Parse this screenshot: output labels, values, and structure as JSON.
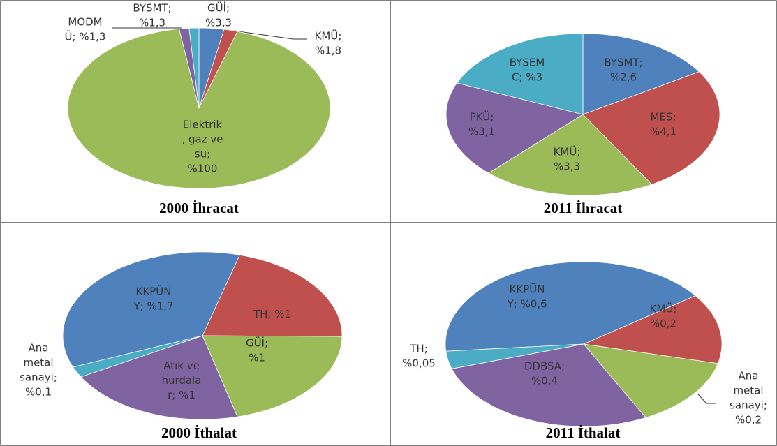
{
  "chart_data": [
    {
      "type": "pie",
      "title": "2000 İhracat",
      "start_angle": 0,
      "values": [
        3.3,
        1.8,
        100,
        1.3,
        1.3
      ],
      "value_labels": [
        "GÜİ;\n%3,3",
        "KMÜ;\n%1,8",
        "Elektrik\n, gaz ve\nsu;\n%100",
        "MODM\nÜ; %1,3",
        "BYSMT;\n%1,3"
      ],
      "colors": [
        "#4f81bd",
        "#c0504d",
        "#9bbb59",
        "#8064a2",
        "#4bacc6"
      ]
    },
    {
      "type": "pie",
      "title": "2011 İhracat",
      "start_angle": 0,
      "values": [
        2.6,
        4.1,
        3.3,
        3.1,
        3
      ],
      "value_labels": [
        "BYSMT;\n%2,6",
        "MES;\n%4,1",
        "KMÜ;\n%3,3",
        "PKÜ;\n%3,1",
        "BYSEM\nC; %3"
      ],
      "colors": [
        "#4f81bd",
        "#c0504d",
        "#9bbb59",
        "#8064a2",
        "#4bacc6"
      ]
    },
    {
      "type": "pie",
      "title": "2000 İthalat",
      "start_angle": 248,
      "values": [
        1.7,
        1,
        1,
        1,
        0.1
      ],
      "value_labels": [
        "KKPÜN\nY; %1,7",
        "TH; %1",
        "GÜİ;\n%1",
        "Atık ve\nhurdala\nr; %1",
        "Ana\nmetal\nsanayi;\n%0,1"
      ],
      "colors": [
        "#4f81bd",
        "#c0504d",
        "#9bbb59",
        "#8064a2",
        "#4bacc6"
      ]
    },
    {
      "type": "pie",
      "title": "2011 İthalat",
      "start_angle": 265,
      "values": [
        0.6,
        0.2,
        0.2,
        0.4,
        0.05
      ],
      "value_labels": [
        "KKPÜN\nY; %0,6",
        "KMÜ;\n%0,2",
        "Ana\nmetal\nsanayi;\n%0,2",
        "DDBSA;\n%0,4",
        "TH;\n%0,05"
      ],
      "colors": [
        "#4f81bd",
        "#c0504d",
        "#9bbb59",
        "#8064a2",
        "#4bacc6"
      ]
    }
  ]
}
